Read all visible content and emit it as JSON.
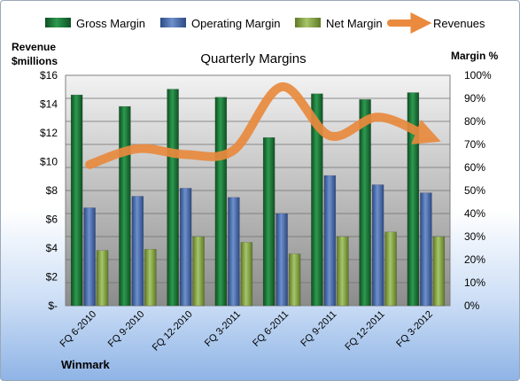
{
  "chart_data": {
    "type": "bar",
    "title": "Quarterly Margins",
    "company": "Winmark",
    "left_axis_label": [
      "Revenue",
      "$millions"
    ],
    "right_axis_label": "Margin %",
    "categories": [
      "FQ 6-2010",
      "FQ 9-2010",
      "FQ 12-2010",
      "FQ 3-2011",
      "FQ 6-2011",
      "FQ 9-2011",
      "FQ 12-2011",
      "FQ 3-2012"
    ],
    "left_ticks": [
      "$-",
      "$2",
      "$4",
      "$6",
      "$8",
      "$10",
      "$12",
      "$14",
      "$16"
    ],
    "right_ticks": [
      "0%",
      "10%",
      "20%",
      "30%",
      "40%",
      "50%",
      "60%",
      "70%",
      "80%",
      "90%",
      "100%"
    ],
    "ylim_margin": [
      0,
      100
    ],
    "ylim_revenue": [
      0,
      16
    ],
    "grid": true,
    "legend_position": "top",
    "series": [
      {
        "name": "Gross Margin",
        "kind": "bar",
        "axis": "right",
        "color": "#1f7a3c",
        "values": [
          91.5,
          86.5,
          94,
          90.5,
          73,
          92,
          89.5,
          92.5
        ]
      },
      {
        "name": "Operating Margin",
        "kind": "bar",
        "axis": "right",
        "color": "#4a6fae",
        "values": [
          42.5,
          47.5,
          51,
          47,
          40,
          56.5,
          52.5,
          49
        ]
      },
      {
        "name": "Net Margin",
        "kind": "bar",
        "axis": "right",
        "color": "#8aa64b",
        "values": [
          24,
          24.5,
          30,
          27.5,
          22.5,
          30,
          32,
          30
        ]
      },
      {
        "name": "Revenues",
        "kind": "line",
        "axis": "left",
        "color": "#e98a3e",
        "values": [
          9.8,
          10.9,
          10.5,
          10.8,
          15.2,
          11.8,
          13.1,
          11.8
        ]
      }
    ]
  }
}
